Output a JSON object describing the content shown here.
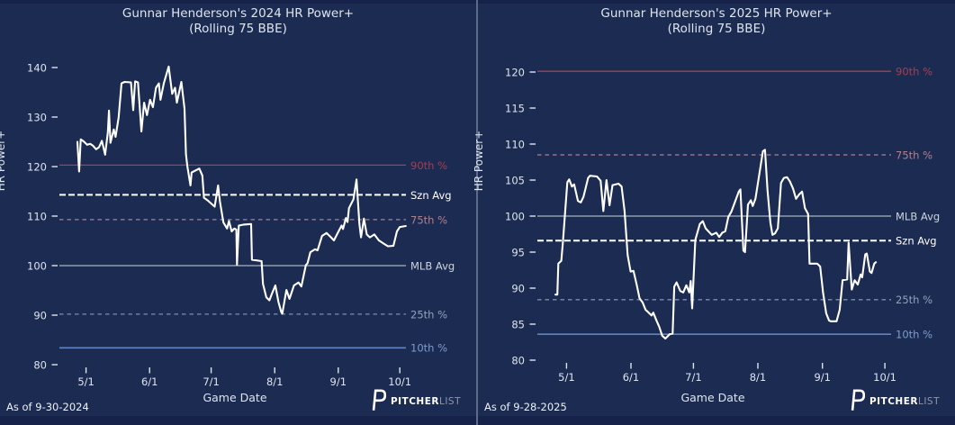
{
  "figure": {
    "background": "#16224a",
    "panel_background": "#1c2b51",
    "divider_color": "#5e6a89",
    "series_color": "#ffffff",
    "brand": {
      "icon": "P",
      "name_bold": "PITCHER",
      "name_light": "LIST"
    }
  },
  "chart_data": [
    {
      "type": "line",
      "title": "Gunnar Henderson's 2024 HR Power+",
      "subtitle": "(Rolling 75 BBE)",
      "xlabel": "Game Date",
      "ylabel": "HR Power+",
      "as_of": "As of 9-30-2024",
      "grid": false,
      "x_axis": {
        "tick_labels": [
          "5/1",
          "6/1",
          "7/1",
          "8/1",
          "9/1",
          "10/1"
        ],
        "tick_days": [
          0,
          31,
          61,
          92,
          123,
          153
        ],
        "xlim_days": [
          -13,
          156
        ]
      },
      "y_axis": {
        "ticks": [
          80,
          90,
          100,
          110,
          120,
          130,
          140
        ],
        "ylim": [
          80,
          140
        ]
      },
      "series": {
        "name": "Rolling 75 BBE HR Power+",
        "color": "#ffffff",
        "points": [
          [
            -4.2,
            125.0
          ],
          [
            -3.4,
            119.0
          ],
          [
            -2.6,
            125.5
          ],
          [
            -1.2,
            125.1
          ],
          [
            0.5,
            124.4
          ],
          [
            2,
            124.6
          ],
          [
            3.4,
            124.2
          ],
          [
            4.9,
            123.5
          ],
          [
            6.3,
            123.9
          ],
          [
            7.7,
            125.2
          ],
          [
            9.3,
            122.4
          ],
          [
            10.6,
            126.9
          ],
          [
            11.2,
            131.3
          ],
          [
            11.9,
            124.8
          ],
          [
            13.5,
            127.5
          ],
          [
            14.4,
            126
          ],
          [
            15.9,
            129.9
          ],
          [
            17.3,
            136.8
          ],
          [
            18.8,
            137.1
          ],
          [
            21.9,
            137
          ],
          [
            23,
            131.4
          ],
          [
            23.9,
            137.2
          ],
          [
            25.3,
            137
          ],
          [
            26.1,
            132.3
          ],
          [
            27,
            127.1
          ],
          [
            28.3,
            132.9
          ],
          [
            29.7,
            130.4
          ],
          [
            31.2,
            133.5
          ],
          [
            32.6,
            132
          ],
          [
            34.1,
            135.9
          ],
          [
            35.5,
            136.8
          ],
          [
            36.3,
            133.5
          ],
          [
            37.9,
            136.8
          ],
          [
            40.3,
            140.2
          ],
          [
            42,
            134.7
          ],
          [
            43.4,
            135.9
          ],
          [
            44.3,
            132.9
          ],
          [
            46.5,
            137.1
          ],
          [
            48,
            131.7
          ],
          [
            48.7,
            122.5
          ],
          [
            49.4,
            120
          ],
          [
            50.9,
            116.2
          ],
          [
            51.5,
            118.8
          ],
          [
            55.2,
            119.6
          ],
          [
            56.7,
            118.2
          ],
          [
            57.5,
            113.7
          ],
          [
            59.2,
            113.2
          ],
          [
            62.7,
            111.9
          ],
          [
            64.4,
            116.2
          ],
          [
            65.3,
            112.9
          ],
          [
            67,
            108.7
          ],
          [
            68.8,
            107.5
          ],
          [
            69.7,
            109
          ],
          [
            71,
            106.9
          ],
          [
            72.3,
            107.5
          ],
          [
            73.3,
            107.3
          ],
          [
            73.6,
            100.2
          ],
          [
            74.5,
            108.1
          ],
          [
            77,
            108.3
          ],
          [
            80.5,
            108.4
          ],
          [
            80.9,
            101.2
          ],
          [
            85.6,
            100.9
          ],
          [
            86.3,
            96.3
          ],
          [
            87.9,
            93.6
          ],
          [
            89.4,
            93
          ],
          [
            90.8,
            94.5
          ],
          [
            92.3,
            96
          ],
          [
            93.8,
            92.7
          ],
          [
            95.2,
            90.6
          ],
          [
            95.7,
            90.3
          ],
          [
            97.7,
            95.1
          ],
          [
            99.2,
            93.3
          ],
          [
            101.4,
            96
          ],
          [
            103.6,
            96.6
          ],
          [
            105,
            95.8
          ],
          [
            107.2,
            100.1
          ],
          [
            108,
            100.5
          ],
          [
            109.4,
            102.7
          ],
          [
            111.6,
            103.3
          ],
          [
            112.9,
            103.1
          ],
          [
            115.1,
            106
          ],
          [
            117.3,
            106.6
          ],
          [
            119.5,
            105.7
          ],
          [
            120.9,
            105.1
          ],
          [
            123.1,
            106.9
          ],
          [
            124.6,
            108.1
          ],
          [
            125.3,
            107.4
          ],
          [
            126.7,
            109.6
          ],
          [
            127.5,
            108.8
          ],
          [
            128.2,
            111.6
          ],
          [
            130.4,
            113.4
          ],
          [
            131.9,
            117.4
          ],
          [
            133.3,
            108.4
          ],
          [
            134.1,
            105.7
          ],
          [
            135.5,
            109.5
          ],
          [
            136.9,
            106.3
          ],
          [
            138.4,
            105.7
          ],
          [
            140.6,
            106.3
          ],
          [
            142.8,
            105.1
          ],
          [
            145,
            104.5
          ],
          [
            147.2,
            103.9
          ],
          [
            149.9,
            104
          ],
          [
            151.6,
            106.9
          ],
          [
            153,
            107.8
          ],
          [
            155.9,
            108
          ]
        ]
      },
      "reference_lines": [
        {
          "label": "90th %",
          "value": 120.3,
          "color": "#a24052",
          "label_color": "#a24052",
          "line_style": "solid"
        },
        {
          "label": "Szn Avg",
          "value": 114.3,
          "color": "#ffffff",
          "label_color": "#ffffff",
          "line_style": "dashed_bold"
        },
        {
          "label": "75th %",
          "value": 109.3,
          "color": "#b2808d",
          "label_color": "#b2808d",
          "line_style": "dashed"
        },
        {
          "label": "MLB Avg",
          "value": 100,
          "color": "#a9b2c0",
          "label_color": "#cdd4de",
          "line_style": "solid"
        },
        {
          "label": "25th %",
          "value": 90.2,
          "color": "#7c8fad",
          "label_color": "#91a2bd",
          "line_style": "dashed"
        },
        {
          "label": "10th %",
          "value": 83.4,
          "color": "#5e84c3",
          "label_color": "#7d9cce",
          "line_style": "solid"
        }
      ]
    },
    {
      "type": "line",
      "title": "Gunnar Henderson's 2025 HR Power+",
      "subtitle": "(Rolling 75 BBE)",
      "xlabel": "Game Date",
      "ylabel": "HR Power+",
      "as_of": "As of 9-28-2025",
      "grid": false,
      "x_axis": {
        "tick_labels": [
          "5/1",
          "6/1",
          "7/1",
          "8/1",
          "9/1",
          "10/1"
        ],
        "tick_days": [
          0,
          31,
          61,
          92,
          123,
          153
        ],
        "xlim_days": [
          -14,
          156
        ]
      },
      "y_axis": {
        "ticks": [
          80,
          85,
          90,
          95,
          100,
          105,
          110,
          115,
          120
        ],
        "ylim": [
          80,
          120
        ]
      },
      "series": {
        "name": "Rolling 75 BBE HR Power+",
        "color": "#ffffff",
        "points": [
          [
            -5.3,
            89.1
          ],
          [
            -4.4,
            89.1
          ],
          [
            -3.9,
            93.4
          ],
          [
            -2.5,
            93.8
          ],
          [
            -1.7,
            96.4
          ],
          [
            0.4,
            104.7
          ],
          [
            1.3,
            105.1
          ],
          [
            2.6,
            104.1
          ],
          [
            3.7,
            104.4
          ],
          [
            5.5,
            102.1
          ],
          [
            6.9,
            101.9
          ],
          [
            8.2,
            102.7
          ],
          [
            10.4,
            105.3
          ],
          [
            11.3,
            105.6
          ],
          [
            14.7,
            105.5
          ],
          [
            16.4,
            104.9
          ],
          [
            17.7,
            100.7
          ],
          [
            19.2,
            105
          ],
          [
            20.7,
            101.5
          ],
          [
            22.1,
            104.3
          ],
          [
            25,
            104.5
          ],
          [
            26.5,
            104.1
          ],
          [
            27.9,
            100.7
          ],
          [
            29.4,
            94.6
          ],
          [
            30.8,
            92.3
          ],
          [
            32.2,
            92.4
          ],
          [
            33.8,
            90.4
          ],
          [
            35.1,
            88.6
          ],
          [
            36.6,
            88
          ],
          [
            38,
            87
          ],
          [
            39.5,
            86.6
          ],
          [
            40.9,
            86.2
          ],
          [
            41.7,
            86.6
          ],
          [
            43.1,
            85.6
          ],
          [
            44.6,
            84.6
          ],
          [
            46,
            83.4
          ],
          [
            47.5,
            83
          ],
          [
            49.6,
            83.6
          ],
          [
            51,
            83.7
          ],
          [
            51.8,
            90.2
          ],
          [
            52.9,
            90.8
          ],
          [
            54.7,
            89.6
          ],
          [
            56.1,
            89.4
          ],
          [
            57.6,
            90.4
          ],
          [
            59,
            89.4
          ],
          [
            59.7,
            91
          ],
          [
            60.4,
            87.2
          ],
          [
            61.9,
            96.7
          ],
          [
            64.1,
            98.9
          ],
          [
            65.5,
            99.3
          ],
          [
            66.9,
            98.3
          ],
          [
            69.8,
            97.4
          ],
          [
            72,
            97.7
          ],
          [
            73.4,
            97.1
          ],
          [
            74.9,
            97.7
          ],
          [
            76.3,
            97.9
          ],
          [
            77.8,
            99.9
          ],
          [
            79.2,
            100.6
          ],
          [
            82.8,
            103.4
          ],
          [
            83.6,
            103.7
          ],
          [
            85,
            95.2
          ],
          [
            85.8,
            95
          ],
          [
            87.2,
            101.6
          ],
          [
            88.6,
            102.2
          ],
          [
            89.5,
            101.4
          ],
          [
            90.8,
            102.4
          ],
          [
            94.4,
            109
          ],
          [
            95.4,
            109.2
          ],
          [
            96.6,
            103.6
          ],
          [
            98,
            99.1
          ],
          [
            99,
            97.4
          ],
          [
            100.2,
            97.6
          ],
          [
            101.6,
            98.3
          ],
          [
            103.1,
            104.6
          ],
          [
            104.5,
            105.3
          ],
          [
            106,
            105.4
          ],
          [
            107.4,
            104.8
          ],
          [
            108.9,
            103.8
          ],
          [
            110.3,
            102.4
          ],
          [
            111.8,
            103
          ],
          [
            113.2,
            103.4
          ],
          [
            114.6,
            101.1
          ],
          [
            116.1,
            100.3
          ],
          [
            116.8,
            93.4
          ],
          [
            120.5,
            93.4
          ],
          [
            121.9,
            93
          ],
          [
            123.3,
            89.4
          ],
          [
            124.8,
            86.5
          ],
          [
            126.2,
            85.5
          ],
          [
            127,
            85.4
          ],
          [
            129.8,
            85.4
          ],
          [
            131.3,
            87
          ],
          [
            132.7,
            91.1
          ],
          [
            134.9,
            91.2
          ],
          [
            135.6,
            96.3
          ],
          [
            137.1,
            89.8
          ],
          [
            138.5,
            91.1
          ],
          [
            140,
            90.5
          ],
          [
            141.4,
            91.9
          ],
          [
            142.1,
            91.5
          ],
          [
            143.6,
            94.7
          ],
          [
            144.3,
            94.8
          ],
          [
            145.8,
            92.3
          ],
          [
            146.6,
            92.1
          ],
          [
            147.9,
            93.4
          ],
          [
            148.7,
            93.6
          ]
        ]
      },
      "reference_lines": [
        {
          "label": "90th %",
          "value": 120.1,
          "color": "#a24052",
          "label_color": "#a24052",
          "line_style": "solid"
        },
        {
          "label": "75th %",
          "value": 108.5,
          "color": "#b2808d",
          "label_color": "#b2808d",
          "line_style": "dashed"
        },
        {
          "label": "MLB Avg",
          "value": 100,
          "color": "#a9b2c0",
          "label_color": "#cdd4de",
          "line_style": "solid"
        },
        {
          "label": "Szn Avg",
          "value": 96.6,
          "color": "#ffffff",
          "label_color": "#ffffff",
          "line_style": "dashed_bold"
        },
        {
          "label": "25th %",
          "value": 88.4,
          "color": "#7c8fad",
          "label_color": "#91a2bd",
          "line_style": "dashed"
        },
        {
          "label": "10th %",
          "value": 83.6,
          "color": "#5e84c3",
          "label_color": "#7d9cce",
          "line_style": "solid"
        }
      ]
    }
  ]
}
